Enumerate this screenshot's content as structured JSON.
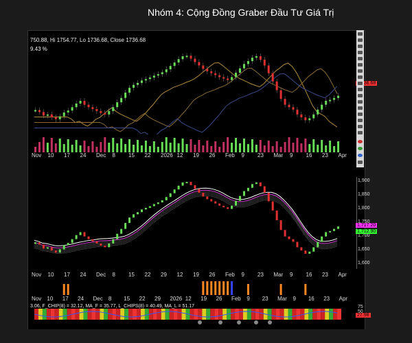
{
  "window": {
    "title": "Nhóm 4: Cộng Đồng Graber Đầu Tư Giá Trị"
  },
  "price_pane": {
    "ohlc_text": "750.88, Hi 1754.77, Lo 1736.68, Close 1736.68",
    "change_text": "9.43 %",
    "last_price_tag": "1,736.68",
    "last_price_color": "#ff3333"
  },
  "indicator_pane": {
    "price_labels": [
      "1,900",
      "1,850",
      "1,800",
      "1,750",
      "1,700",
      "1,650",
      "1,600"
    ],
    "tag_upper": "1,717.20",
    "tag_lower": "1,712.90",
    "tag_upper_color": "#ff33ff",
    "tag_lower_color": "#33ff33"
  },
  "chip_pane": {
    "formula_text": "3.06, F_CHIP(8) = 32.12, MA_F = 35.77, L_CHIPS(8) = 40.49, MA_L = 51.17",
    "axis_labels": [
      "75",
      "50"
    ],
    "tag": "27.98",
    "tag_color": "#ff3333"
  },
  "x_axis": {
    "labels_top": [
      "Nov",
      "10",
      "17",
      "24",
      "Dec",
      "8",
      "15",
      "22",
      "2026",
      "12",
      "19",
      "26",
      "Feb",
      "9",
      "23",
      "Mar",
      "9",
      "16",
      "23",
      "Apr"
    ],
    "labels_mid": [
      "Nov",
      "10",
      "17",
      "24",
      "Dec",
      "8",
      "15",
      "22",
      "29",
      "12",
      "19",
      "26",
      "Feb",
      "9",
      "23",
      "Mar",
      "9",
      "16",
      "23",
      "Apr"
    ],
    "labels_bot": [
      "Nov",
      "10",
      "17",
      "24",
      "Dec",
      "8",
      "15",
      "22",
      "29",
      "2026",
      "12",
      "19",
      "26",
      "Feb",
      "9",
      "23",
      "Mar",
      "9",
      "16",
      "23",
      "Apr"
    ]
  },
  "chart_data": {
    "type": "candlestick",
    "closes": [
      1678,
      1670,
      1655,
      1660,
      1648,
      1640,
      1652,
      1668,
      1676,
      1690,
      1705,
      1716,
      1700,
      1690,
      1682,
      1674,
      1666,
      1660,
      1674,
      1690,
      1710,
      1728,
      1750,
      1770,
      1782,
      1790,
      1800,
      1806,
      1812,
      1820,
      1826,
      1834,
      1846,
      1860,
      1874,
      1888,
      1900,
      1902,
      1890,
      1876,
      1862,
      1848,
      1838,
      1830,
      1822,
      1814,
      1808,
      1802,
      1814,
      1832,
      1850,
      1868,
      1880,
      1894,
      1900,
      1886,
      1862,
      1830,
      1796,
      1760,
      1724,
      1700,
      1690,
      1680,
      1660,
      1648,
      1636,
      1644,
      1660,
      1680,
      1700,
      1716,
      1720,
      1728,
      1737
    ],
    "ylim": [
      1600,
      1900
    ]
  }
}
